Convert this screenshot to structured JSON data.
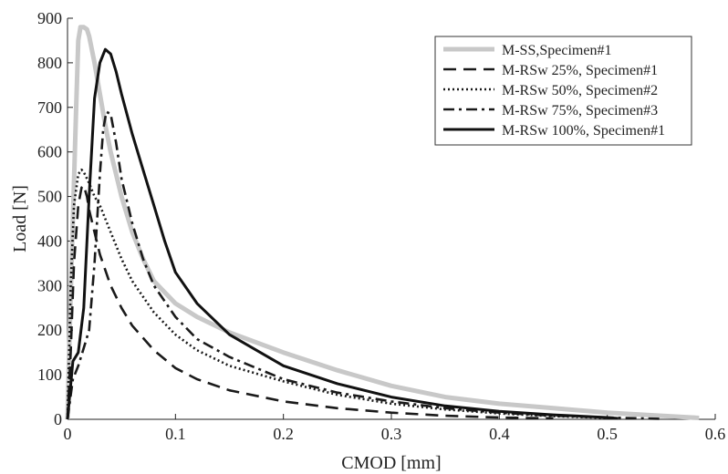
{
  "chart_data": {
    "type": "line",
    "title": "",
    "xlabel": "CMOD [mm]",
    "ylabel": "Load [N]",
    "xlim": [
      0,
      0.6
    ],
    "ylim": [
      0,
      900
    ],
    "xticks": [
      0,
      0.1,
      0.2,
      0.3,
      0.4,
      0.5,
      0.6
    ],
    "xtick_labels": [
      "0",
      "0.1",
      "0.2",
      "0.3",
      "0.4",
      "0.5",
      "0.6"
    ],
    "yticks": [
      0,
      100,
      200,
      300,
      400,
      500,
      600,
      700,
      800,
      900
    ],
    "ytick_labels": [
      "0",
      "100",
      "200",
      "300",
      "400",
      "500",
      "600",
      "700",
      "800",
      "900"
    ],
    "grid": false,
    "legend_position": "top-right",
    "series": [
      {
        "name": "M-SS,Specimen#1",
        "color": "#c8c8c8",
        "style": "solid",
        "x": [
          0,
          0.002,
          0.005,
          0.008,
          0.01,
          0.012,
          0.015,
          0.018,
          0.02,
          0.025,
          0.03,
          0.035,
          0.04,
          0.05,
          0.06,
          0.07,
          0.08,
          0.1,
          0.12,
          0.15,
          0.2,
          0.25,
          0.3,
          0.35,
          0.4,
          0.45,
          0.5,
          0.55,
          0.585
        ],
        "y": [
          0,
          200,
          450,
          700,
          850,
          880,
          880,
          875,
          860,
          800,
          730,
          660,
          600,
          500,
          420,
          360,
          310,
          260,
          230,
          195,
          150,
          110,
          75,
          50,
          35,
          25,
          15,
          8,
          3
        ]
      },
      {
        "name": "M-RSw 25%, Specimen#1",
        "color": "#1a1a1a",
        "style": "dashed",
        "x": [
          0,
          0.003,
          0.006,
          0.01,
          0.013,
          0.015,
          0.018,
          0.02,
          0.025,
          0.03,
          0.04,
          0.05,
          0.06,
          0.08,
          0.1,
          0.12,
          0.15,
          0.2,
          0.25,
          0.3,
          0.35,
          0.4,
          0.45
        ],
        "y": [
          0,
          150,
          350,
          480,
          520,
          525,
          500,
          470,
          420,
          370,
          300,
          250,
          210,
          155,
          115,
          90,
          65,
          40,
          25,
          15,
          8,
          4,
          2
        ]
      },
      {
        "name": "M-RSw 50%, Specimen#2",
        "color": "#1a1a1a",
        "style": "dotted",
        "x": [
          0,
          0.003,
          0.006,
          0.01,
          0.013,
          0.015,
          0.02,
          0.025,
          0.03,
          0.04,
          0.05,
          0.06,
          0.08,
          0.1,
          0.12,
          0.15,
          0.2,
          0.25,
          0.3,
          0.35,
          0.4,
          0.45,
          0.5
        ],
        "y": [
          0,
          300,
          480,
          550,
          560,
          555,
          530,
          500,
          480,
          420,
          360,
          310,
          240,
          190,
          155,
          120,
          85,
          55,
          35,
          22,
          13,
          7,
          3
        ]
      },
      {
        "name": "M-RSw 75%, Specimen#3",
        "color": "#1a1a1a",
        "style": "dashdot",
        "x": [
          0,
          0.005,
          0.01,
          0.015,
          0.02,
          0.025,
          0.03,
          0.033,
          0.036,
          0.04,
          0.045,
          0.05,
          0.06,
          0.07,
          0.08,
          0.1,
          0.12,
          0.15,
          0.2,
          0.25,
          0.3,
          0.35,
          0.4,
          0.45,
          0.5,
          0.55
        ],
        "y": [
          0,
          90,
          120,
          160,
          200,
          350,
          550,
          650,
          690,
          685,
          620,
          540,
          440,
          360,
          300,
          230,
          180,
          140,
          90,
          60,
          40,
          25,
          15,
          8,
          4,
          1
        ]
      },
      {
        "name": "M-RSw 100%, Specimen#1",
        "color": "#111111",
        "style": "solid",
        "x": [
          0,
          0.005,
          0.01,
          0.015,
          0.02,
          0.025,
          0.03,
          0.035,
          0.04,
          0.045,
          0.05,
          0.06,
          0.07,
          0.08,
          0.09,
          0.1,
          0.12,
          0.15,
          0.2,
          0.25,
          0.3,
          0.35,
          0.4,
          0.45,
          0.5,
          0.51
        ],
        "y": [
          0,
          130,
          150,
          250,
          500,
          720,
          800,
          830,
          820,
          780,
          730,
          640,
          560,
          480,
          400,
          330,
          260,
          190,
          120,
          80,
          50,
          30,
          18,
          10,
          4,
          2
        ]
      }
    ]
  }
}
